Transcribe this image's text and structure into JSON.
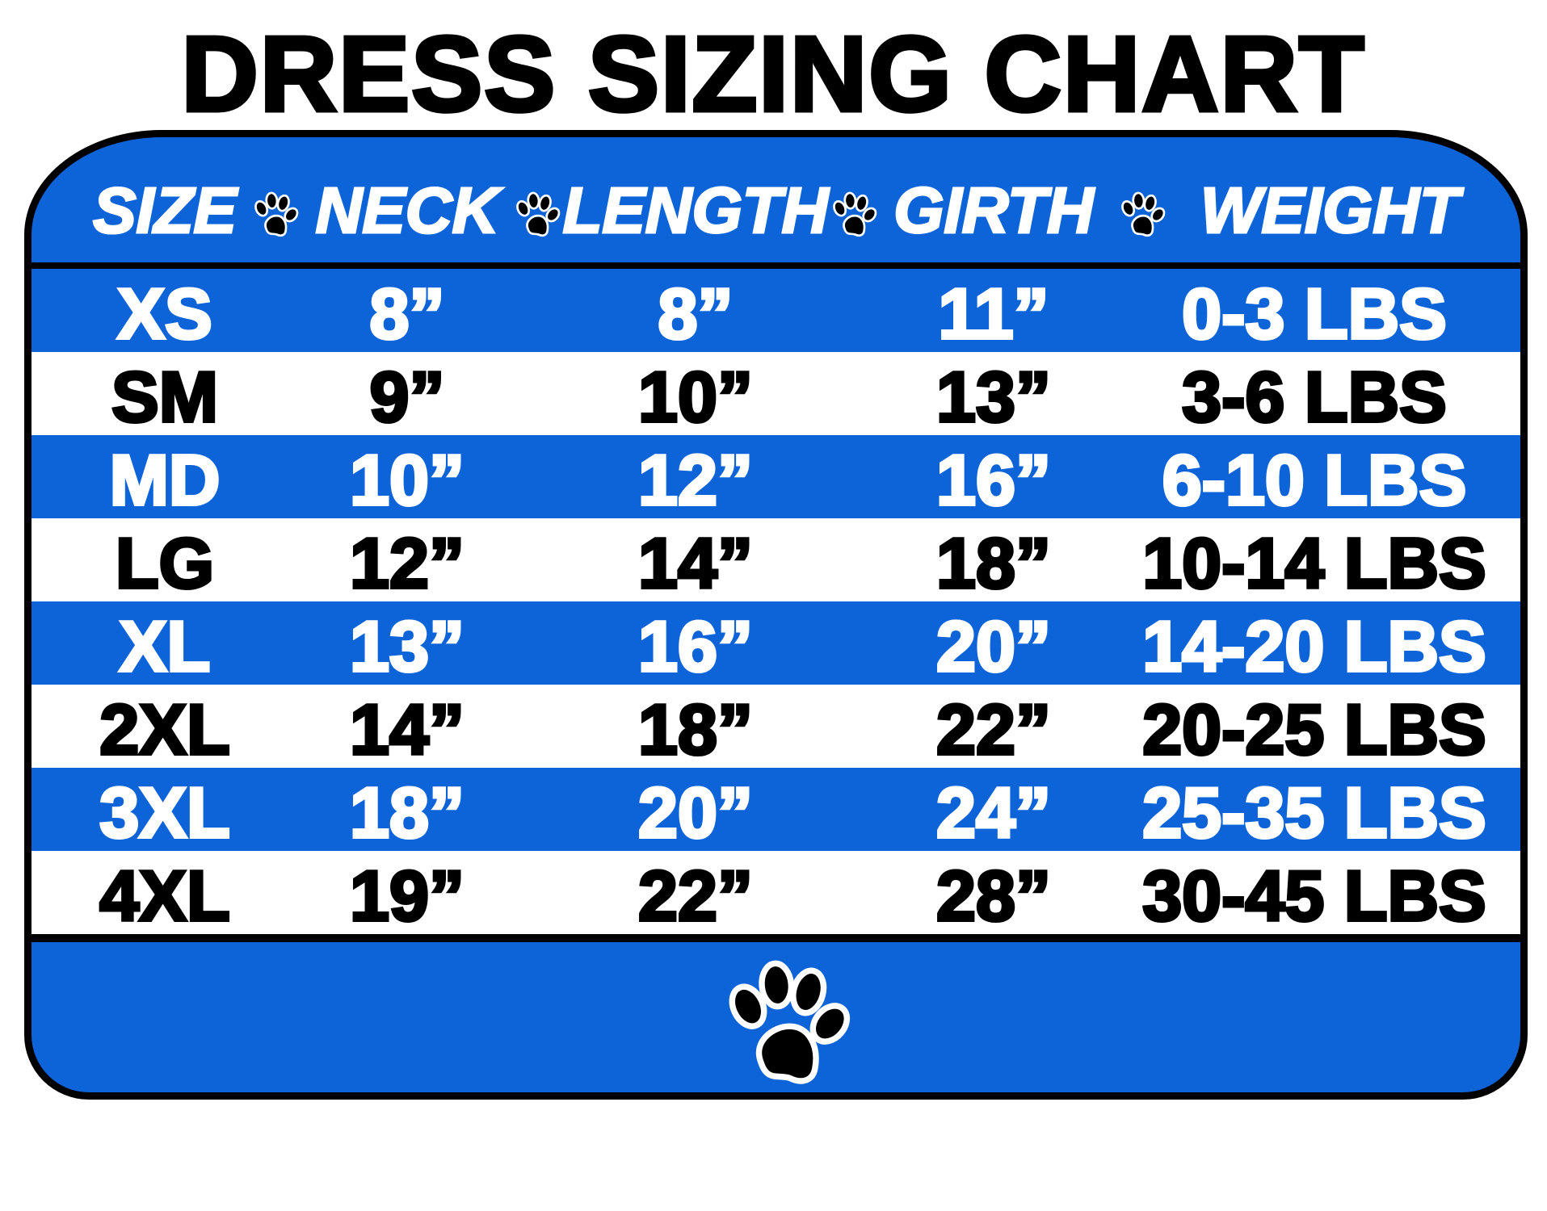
{
  "title": "DRESS SIZING CHART",
  "colors": {
    "blue": "#0d64d8",
    "black": "#000000",
    "white": "#ffffff"
  },
  "icons": {
    "separator": "paw-print-icon",
    "footer": "paw-print-icon"
  },
  "columns": [
    "SIZE",
    "NECK",
    "LENGTH",
    "GIRTH",
    "WEIGHT"
  ],
  "rows": [
    {
      "size": "XS",
      "neck": "8”",
      "length": "8”",
      "girth": "11”",
      "weight": "0-3 LBS"
    },
    {
      "size": "SM",
      "neck": "9”",
      "length": "10”",
      "girth": "13”",
      "weight": "3-6 LBS"
    },
    {
      "size": "MD",
      "neck": "10”",
      "length": "12”",
      "girth": "16”",
      "weight": "6-10 LBS"
    },
    {
      "size": "LG",
      "neck": "12”",
      "length": "14”",
      "girth": "18”",
      "weight": "10-14 LBS"
    },
    {
      "size": "XL",
      "neck": "13”",
      "length": "16”",
      "girth": "20”",
      "weight": "14-20 LBS"
    },
    {
      "size": "2XL",
      "neck": "14”",
      "length": "18”",
      "girth": "22”",
      "weight": "20-25 LBS"
    },
    {
      "size": "3XL",
      "neck": "18”",
      "length": "20”",
      "girth": "24”",
      "weight": "25-35 LBS"
    },
    {
      "size": "4XL",
      "neck": "19”",
      "length": "22”",
      "girth": "28”",
      "weight": "30-45 LBS"
    }
  ]
}
